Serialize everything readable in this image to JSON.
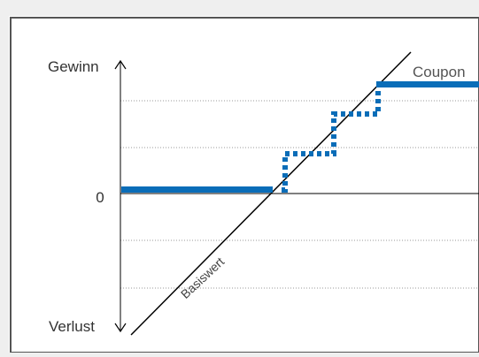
{
  "diagram": {
    "labels": {
      "y_top": "Gewinn",
      "y_bottom": "Verlust",
      "zero": "0",
      "underlying": "Basiswert",
      "coupon": "Coupon"
    },
    "colors": {
      "payoff": "#0a6db8",
      "underlying_line": "#000000",
      "grid": "#9a9a9a",
      "panel": "#ffffff",
      "page": "#efefef",
      "text": "#333333",
      "coupon_text": "#555555"
    }
  }
}
